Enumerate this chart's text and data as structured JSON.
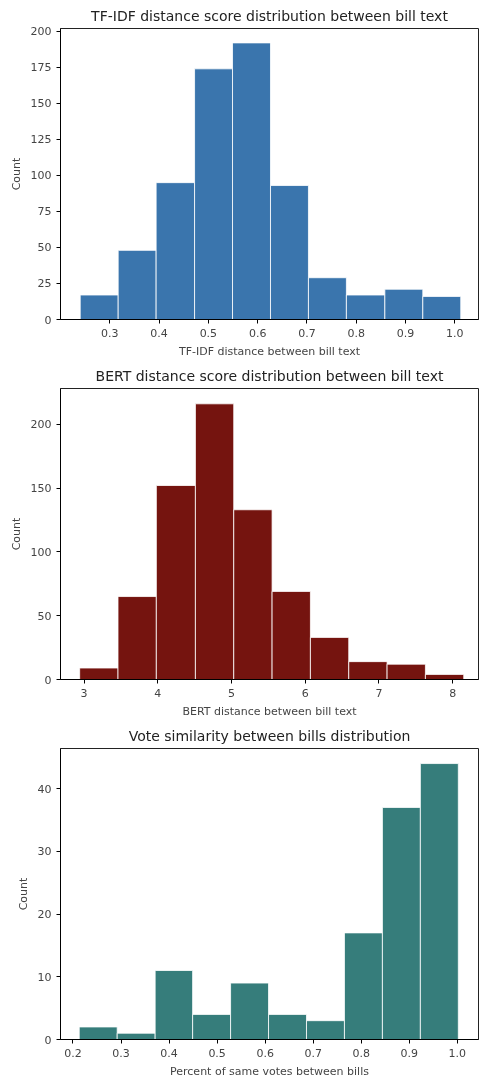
{
  "chart_data": [
    {
      "type": "histogram",
      "title": "TF-IDF distance score distribution between bill text",
      "xlabel": "TF-IDF distance between bill text",
      "ylabel": "Count",
      "color": "#3a75ad",
      "bins": [
        0.24,
        0.317,
        0.394,
        0.472,
        0.549,
        0.626,
        0.703,
        0.78,
        0.858,
        0.935,
        1.012
      ],
      "values": [
        17,
        48,
        95,
        174,
        192,
        93,
        29,
        17,
        21,
        16
      ],
      "xlim": [
        0.2,
        1.048
      ],
      "ylim": [
        0,
        202
      ],
      "xticks": [
        {
          "value": 0.3,
          "label": "0.3"
        },
        {
          "value": 0.4,
          "label": "0.4"
        },
        {
          "value": 0.5,
          "label": "0.5"
        },
        {
          "value": 0.6,
          "label": "0.6"
        },
        {
          "value": 0.7,
          "label": "0.7"
        },
        {
          "value": 0.8,
          "label": "0.8"
        },
        {
          "value": 0.9,
          "label": "0.9"
        },
        {
          "value": 1.0,
          "label": "1.0"
        }
      ],
      "yticks": [
        0,
        25,
        50,
        75,
        100,
        125,
        150,
        175,
        200
      ],
      "grid": false
    },
    {
      "type": "histogram",
      "title": "BERT distance score distribution between bill text",
      "xlabel": "BERT distance between bill text",
      "ylabel": "Count",
      "color": "#75140f",
      "bins": [
        2.94,
        3.46,
        3.98,
        4.51,
        5.03,
        5.55,
        6.07,
        6.59,
        7.11,
        7.63,
        8.15
      ],
      "values": [
        9,
        65,
        152,
        216,
        133,
        69,
        33,
        14,
        12,
        4
      ],
      "xlim": [
        2.68,
        8.35
      ],
      "ylim": [
        0,
        228
      ],
      "xticks": [
        3,
        4,
        5,
        6,
        7,
        8
      ],
      "yticks": [
        0,
        50,
        100,
        150,
        200
      ],
      "grid": false
    },
    {
      "type": "histogram",
      "title": "Vote similarity between bills distribution",
      "xlabel": "Percent of same votes between bills",
      "ylabel": "Count",
      "color": "#367d7b",
      "bins": [
        0.213,
        0.292,
        0.371,
        0.449,
        0.528,
        0.607,
        0.686,
        0.765,
        0.844,
        0.923,
        1.002
      ],
      "values": [
        2,
        1,
        11,
        4,
        9,
        4,
        3,
        17,
        37,
        44
      ],
      "xlim": [
        0.174,
        1.044
      ],
      "ylim": [
        0,
        46.4
      ],
      "xticks": [
        {
          "value": 0.2,
          "label": "0.2"
        },
        {
          "value": 0.3,
          "label": "0.3"
        },
        {
          "value": 0.4,
          "label": "0.4"
        },
        {
          "value": 0.5,
          "label": "0.5"
        },
        {
          "value": 0.6,
          "label": "0.6"
        },
        {
          "value": 0.7,
          "label": "0.7"
        },
        {
          "value": 0.8,
          "label": "0.8"
        },
        {
          "value": 0.9,
          "label": "0.9"
        },
        {
          "value": 1.0,
          "label": "1.0"
        }
      ],
      "yticks": [
        0,
        10,
        20,
        30,
        40
      ],
      "grid": false
    }
  ]
}
